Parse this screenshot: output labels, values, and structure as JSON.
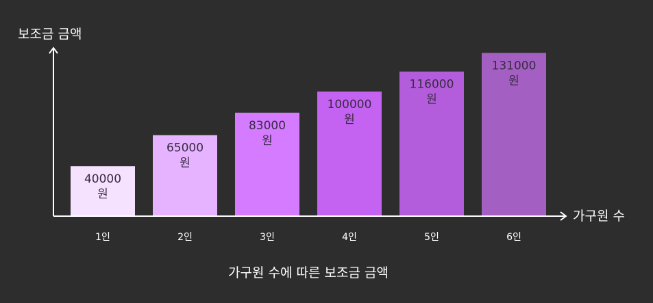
{
  "chart_data": {
    "type": "bar",
    "title": "가구원 수에 따른 보조금 금액",
    "xlabel": "가구원 수",
    "ylabel": "보조금 금액",
    "categories": [
      "1인",
      "2인",
      "3인",
      "4인",
      "5인",
      "6인"
    ],
    "values": [
      40000,
      65000,
      83000,
      100000,
      116000,
      131000
    ],
    "value_labels": [
      "40000\n원",
      "65000\n원",
      "83000\n원",
      "100000\n원",
      "116000\n원",
      "131000\n원"
    ],
    "bar_colors": [
      "#f5e2ff",
      "#e5b3ff",
      "#d57bff",
      "#c462f2",
      "#b45ddc",
      "#a45fc2"
    ],
    "ylim": [
      0,
      135000
    ],
    "grid": false,
    "legend": false
  },
  "colors": {
    "background": "#2d2d2d",
    "axis": "#ffffff",
    "bar_text": "#3a2a44"
  }
}
